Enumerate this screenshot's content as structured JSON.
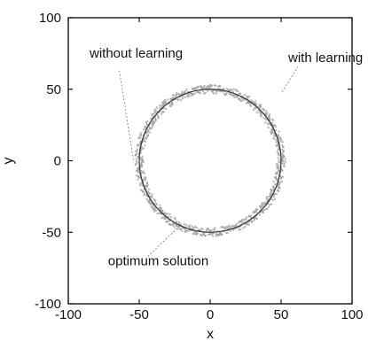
{
  "chart_data": {
    "type": "scatter",
    "xlabel": "x",
    "ylabel": "y",
    "xlim": [
      -100,
      100
    ],
    "ylim": [
      -100,
      100
    ],
    "xticks": [
      -100,
      -50,
      0,
      50,
      100
    ],
    "yticks": [
      -100,
      -50,
      0,
      50,
      100
    ],
    "xtick_labels": [
      "-100",
      "-50",
      "0",
      "50",
      "100"
    ],
    "ytick_labels": [
      "-100",
      "-50",
      "0",
      "50",
      "100"
    ],
    "grid": false,
    "legend": "none",
    "series": [
      {
        "description_id": "optimum",
        "shape": "circle",
        "center": [
          0,
          0
        ],
        "radius": 50,
        "color": "#333333"
      },
      {
        "description_id": "learned",
        "shape": "noisy-ring",
        "center": [
          0,
          0
        ],
        "radius": 50,
        "spread": 3,
        "color": "#9a9a9a"
      }
    ],
    "annotations": [
      {
        "text": "without learning",
        "text_at": [
          -85,
          72
        ],
        "points_to": [
          -54,
          0
        ]
      },
      {
        "text": "with learning",
        "text_at": [
          55,
          69
        ],
        "points_to": [
          50,
          47
        ]
      },
      {
        "text": "optimum solution",
        "text_at": [
          -72,
          -73
        ],
        "points_to": [
          -22,
          -46
        ]
      }
    ]
  }
}
